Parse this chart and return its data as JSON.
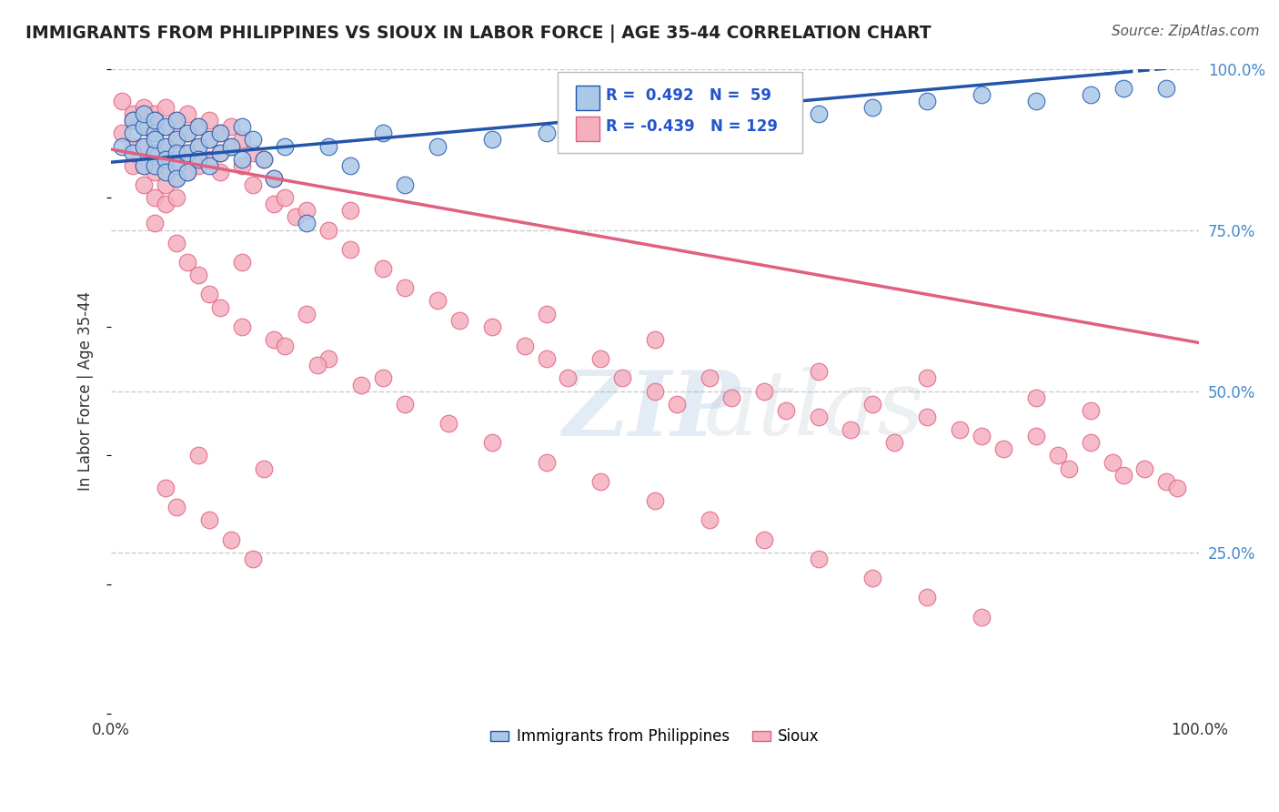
{
  "title": "IMMIGRANTS FROM PHILIPPINES VS SIOUX IN LABOR FORCE | AGE 35-44 CORRELATION CHART",
  "source": "Source: ZipAtlas.com",
  "ylabel": "In Labor Force | Age 35-44",
  "xlim": [
    0,
    1
  ],
  "ylim": [
    0,
    1
  ],
  "xtick_labels": [
    "0.0%",
    "100.0%"
  ],
  "ytick_labels": [
    "25.0%",
    "50.0%",
    "75.0%",
    "100.0%"
  ],
  "ytick_values": [
    0.25,
    0.5,
    0.75,
    1.0
  ],
  "blue_R": "0.492",
  "blue_N": "59",
  "pink_R": "-0.439",
  "pink_N": "129",
  "blue_color": "#aac8e8",
  "pink_color": "#f5b0c0",
  "blue_line_color": "#2255aa",
  "pink_line_color": "#e06080",
  "legend_blue_label": "Immigrants from Philippines",
  "legend_pink_label": "Sioux",
  "background_color": "#ffffff",
  "grid_color": "#cccccc",
  "blue_x": [
    0.01,
    0.02,
    0.02,
    0.02,
    0.03,
    0.03,
    0.03,
    0.03,
    0.04,
    0.04,
    0.04,
    0.04,
    0.04,
    0.05,
    0.05,
    0.05,
    0.05,
    0.06,
    0.06,
    0.06,
    0.06,
    0.06,
    0.07,
    0.07,
    0.07,
    0.08,
    0.08,
    0.08,
    0.09,
    0.09,
    0.1,
    0.1,
    0.11,
    0.12,
    0.12,
    0.13,
    0.14,
    0.15,
    0.16,
    0.18,
    0.2,
    0.22,
    0.25,
    0.27,
    0.3,
    0.35,
    0.4,
    0.45,
    0.5,
    0.55,
    0.6,
    0.65,
    0.7,
    0.75,
    0.8,
    0.85,
    0.9,
    0.93,
    0.97
  ],
  "blue_y": [
    0.88,
    0.92,
    0.87,
    0.9,
    0.91,
    0.88,
    0.85,
    0.93,
    0.9,
    0.87,
    0.92,
    0.89,
    0.85,
    0.91,
    0.88,
    0.86,
    0.84,
    0.92,
    0.89,
    0.87,
    0.85,
    0.83,
    0.9,
    0.87,
    0.84,
    0.91,
    0.88,
    0.86,
    0.89,
    0.85,
    0.9,
    0.87,
    0.88,
    0.91,
    0.86,
    0.89,
    0.86,
    0.83,
    0.88,
    0.76,
    0.88,
    0.85,
    0.9,
    0.82,
    0.88,
    0.89,
    0.9,
    0.91,
    0.92,
    0.93,
    0.94,
    0.93,
    0.94,
    0.95,
    0.96,
    0.95,
    0.96,
    0.97,
    0.97
  ],
  "pink_x": [
    0.01,
    0.01,
    0.02,
    0.02,
    0.02,
    0.02,
    0.03,
    0.03,
    0.03,
    0.03,
    0.03,
    0.04,
    0.04,
    0.04,
    0.04,
    0.04,
    0.04,
    0.05,
    0.05,
    0.05,
    0.05,
    0.05,
    0.05,
    0.06,
    0.06,
    0.06,
    0.06,
    0.06,
    0.07,
    0.07,
    0.07,
    0.07,
    0.08,
    0.08,
    0.08,
    0.09,
    0.09,
    0.09,
    0.1,
    0.1,
    0.1,
    0.11,
    0.11,
    0.12,
    0.12,
    0.13,
    0.13,
    0.14,
    0.15,
    0.15,
    0.16,
    0.17,
    0.18,
    0.2,
    0.22,
    0.22,
    0.25,
    0.27,
    0.3,
    0.32,
    0.35,
    0.38,
    0.4,
    0.4,
    0.42,
    0.45,
    0.47,
    0.5,
    0.5,
    0.52,
    0.55,
    0.57,
    0.6,
    0.62,
    0.65,
    0.65,
    0.68,
    0.7,
    0.72,
    0.75,
    0.75,
    0.78,
    0.8,
    0.82,
    0.85,
    0.85,
    0.87,
    0.88,
    0.9,
    0.9,
    0.92,
    0.93,
    0.95,
    0.97,
    0.98,
    0.04,
    0.06,
    0.07,
    0.08,
    0.09,
    0.1,
    0.12,
    0.15,
    0.2,
    0.25,
    0.12,
    0.18,
    0.08,
    0.14,
    0.05,
    0.06,
    0.09,
    0.11,
    0.13,
    0.16,
    0.19,
    0.23,
    0.27,
    0.31,
    0.35,
    0.4,
    0.45,
    0.5,
    0.55,
    0.6,
    0.65,
    0.7,
    0.75,
    0.8
  ],
  "pink_y": [
    0.95,
    0.9,
    0.93,
    0.88,
    0.92,
    0.85,
    0.94,
    0.91,
    0.88,
    0.85,
    0.82,
    0.93,
    0.9,
    0.87,
    0.84,
    0.92,
    0.8,
    0.94,
    0.91,
    0.88,
    0.85,
    0.82,
    0.79,
    0.92,
    0.89,
    0.86,
    0.83,
    0.8,
    0.93,
    0.9,
    0.87,
    0.84,
    0.91,
    0.88,
    0.85,
    0.92,
    0.89,
    0.86,
    0.9,
    0.87,
    0.84,
    0.91,
    0.88,
    0.89,
    0.85,
    0.87,
    0.82,
    0.86,
    0.83,
    0.79,
    0.8,
    0.77,
    0.78,
    0.75,
    0.72,
    0.78,
    0.69,
    0.66,
    0.64,
    0.61,
    0.6,
    0.57,
    0.55,
    0.62,
    0.52,
    0.55,
    0.52,
    0.5,
    0.58,
    0.48,
    0.52,
    0.49,
    0.5,
    0.47,
    0.46,
    0.53,
    0.44,
    0.48,
    0.42,
    0.46,
    0.52,
    0.44,
    0.43,
    0.41,
    0.43,
    0.49,
    0.4,
    0.38,
    0.42,
    0.47,
    0.39,
    0.37,
    0.38,
    0.36,
    0.35,
    0.76,
    0.73,
    0.7,
    0.68,
    0.65,
    0.63,
    0.6,
    0.58,
    0.55,
    0.52,
    0.7,
    0.62,
    0.4,
    0.38,
    0.35,
    0.32,
    0.3,
    0.27,
    0.24,
    0.57,
    0.54,
    0.51,
    0.48,
    0.45,
    0.42,
    0.39,
    0.36,
    0.33,
    0.3,
    0.27,
    0.24,
    0.21,
    0.18,
    0.15
  ]
}
